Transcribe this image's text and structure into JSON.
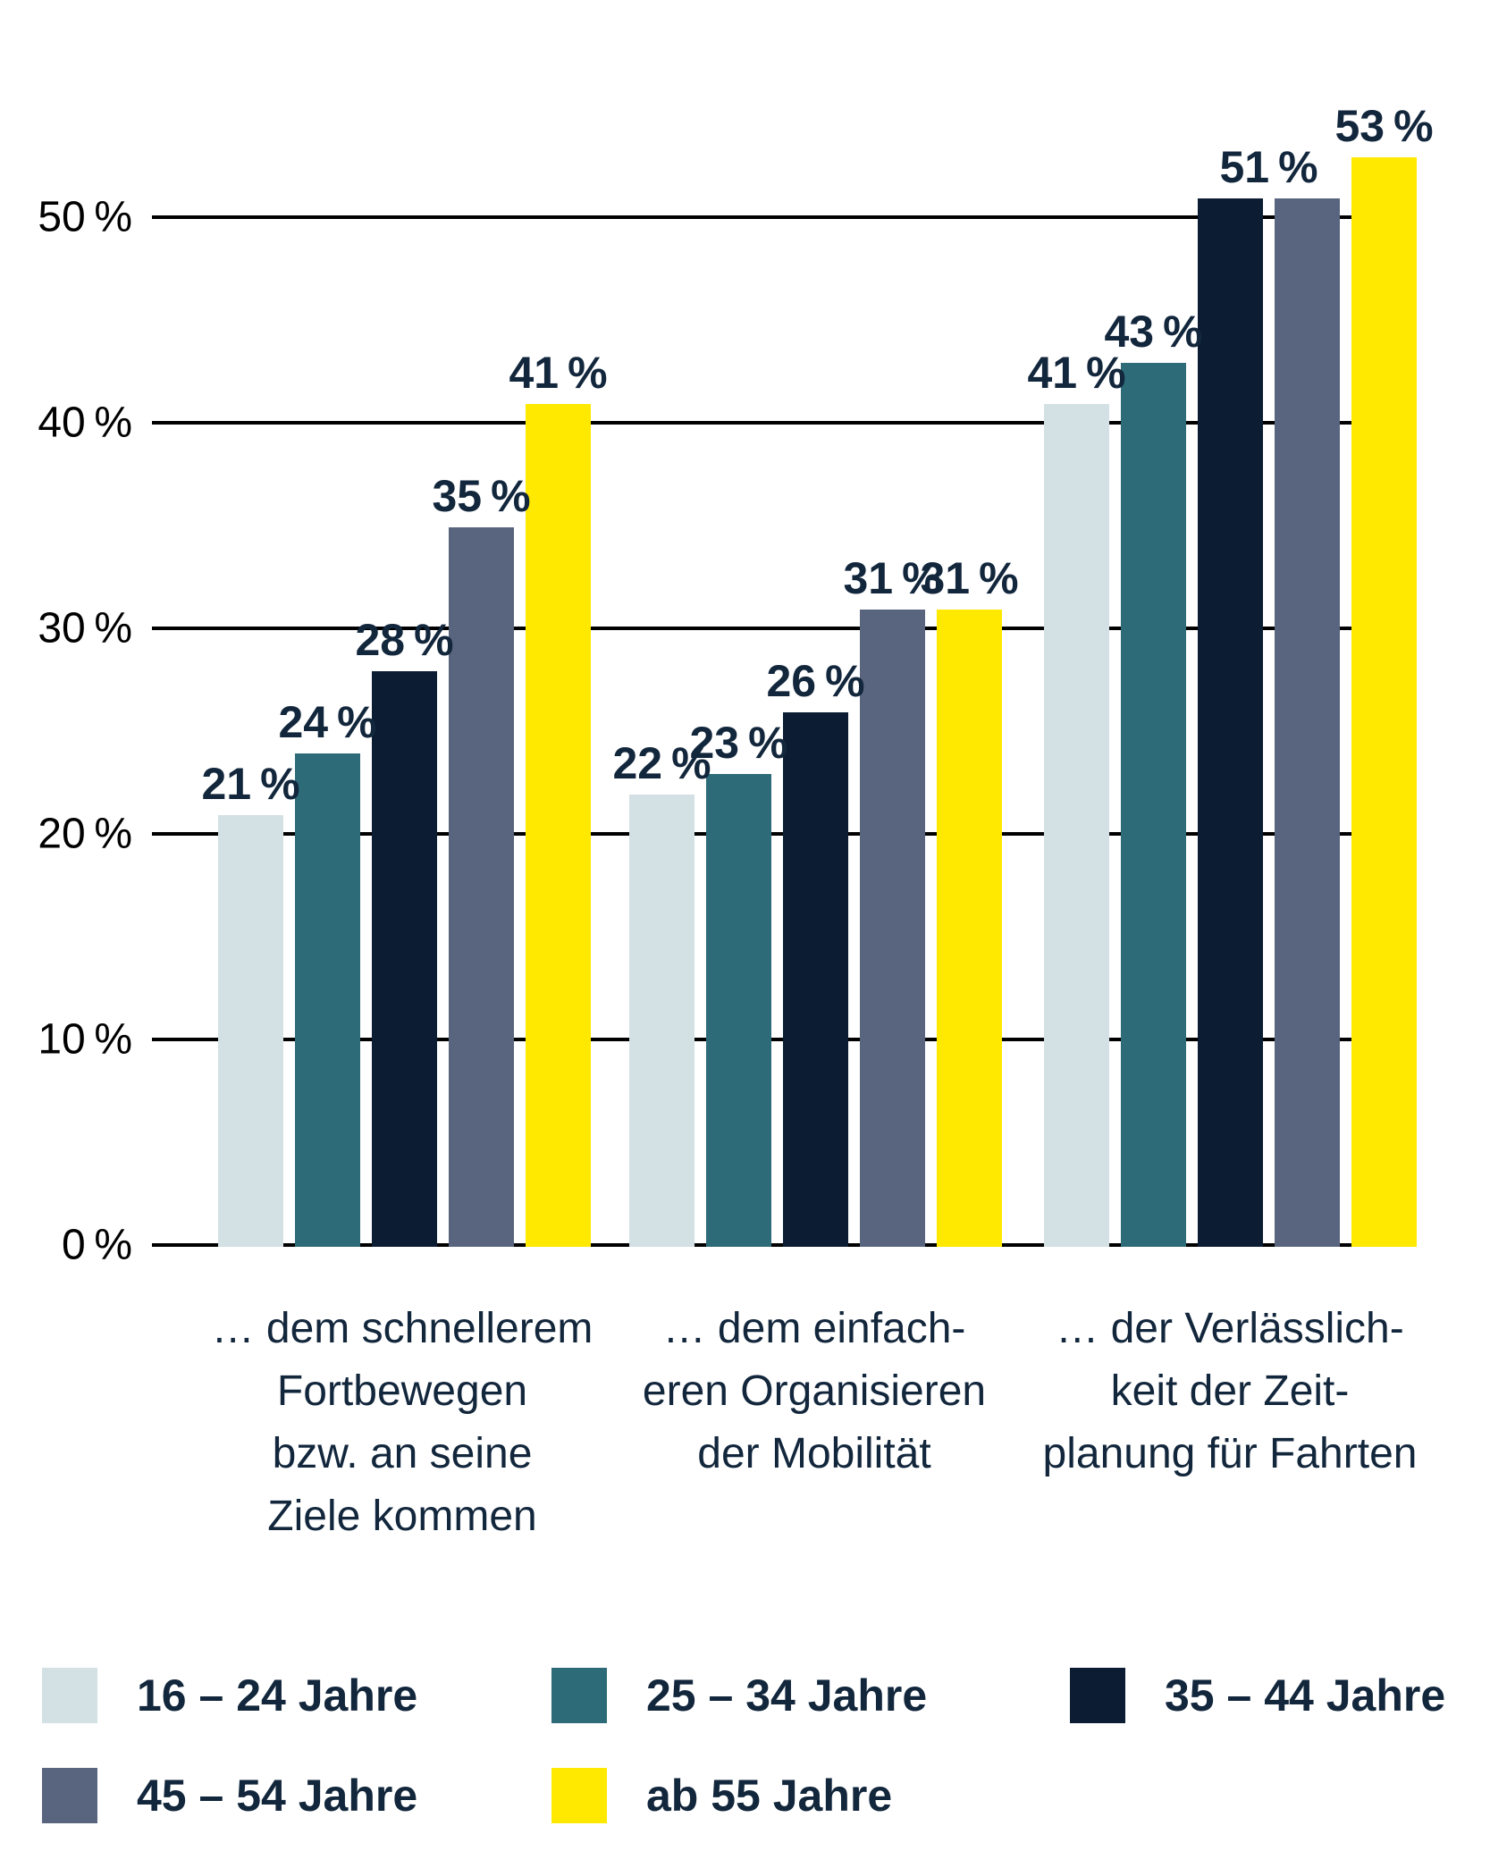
{
  "chart_data": {
    "type": "bar",
    "unit": "%",
    "grid": true,
    "legend_position": "bottom",
    "ylim": [
      0,
      55
    ],
    "yticks": [
      {
        "value": 0,
        "label": "0 %"
      },
      {
        "value": 10,
        "label": "10 %"
      },
      {
        "value": 20,
        "label": "20 %"
      },
      {
        "value": 30,
        "label": "30 %"
      },
      {
        "value": 40,
        "label": "40 %"
      },
      {
        "value": 50,
        "label": "50 %"
      }
    ],
    "categories": [
      {
        "label": "… dem schnellerem\nFortbewegen\nbzw. an seine\nZiele kommen"
      },
      {
        "label": "… dem einfach-\neren Organisieren\nder Mobilität"
      },
      {
        "label": "… der Verlässlich-\nkeit der Zeit-\nplanung für Fahrten"
      }
    ],
    "series": [
      {
        "name": "16 – 24 Jahre",
        "color": "#d3e0e4",
        "values": [
          21,
          22,
          41
        ]
      },
      {
        "name": "25 – 34 Jahre",
        "color": "#2e6b78",
        "values": [
          24,
          23,
          43
        ]
      },
      {
        "name": "35 – 44 Jahre",
        "color": "#0b1c33",
        "values": [
          28,
          26,
          51
        ]
      },
      {
        "name": "45 – 54 Jahre",
        "color": "#59647e",
        "values": [
          35,
          31,
          51
        ]
      },
      {
        "name": "ab 55 Jahre",
        "color": "#ffe900",
        "values": [
          41,
          31,
          53
        ]
      }
    ],
    "value_labels": [
      [
        "21 %",
        "24 %",
        "28 %",
        "35 %",
        "41 %"
      ],
      [
        "22 %",
        "23 %",
        "26 %",
        "31 %",
        "31 %"
      ],
      [
        "41 %",
        "43 %",
        "51 %",
        "",
        "53 %"
      ]
    ]
  }
}
